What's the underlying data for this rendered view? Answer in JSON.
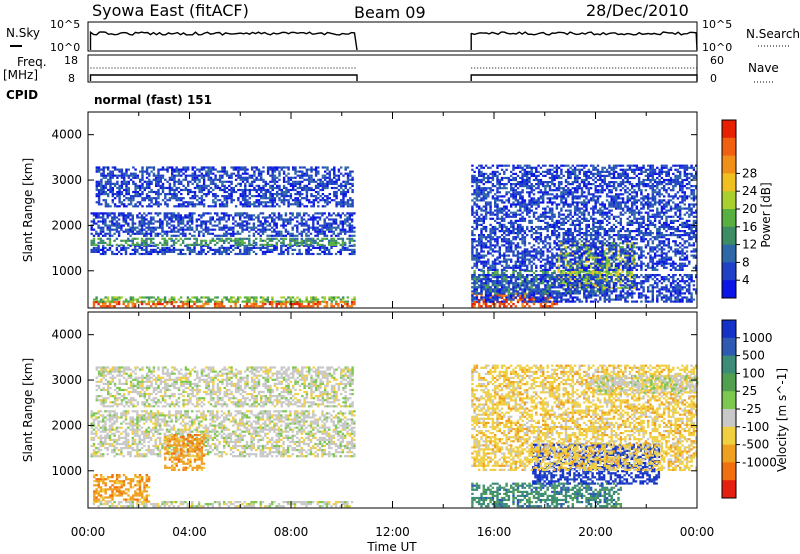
{
  "header": {
    "title": "Syowa East (fitACF)",
    "beam": "Beam 09",
    "date": "28/Dec/2010"
  },
  "nsky_panel": {
    "left_label": "N.Sky",
    "right_label": "N.Search",
    "ticks": [
      "10^5",
      "10^0"
    ]
  },
  "freq_panel": {
    "left_label_line1": "Freq.",
    "left_label_line2": "[MHz]",
    "left_ticks": [
      "18",
      "8"
    ],
    "right_label": "Nave",
    "right_ticks": [
      "60",
      "0"
    ]
  },
  "cpid_panel": {
    "label": "CPID",
    "text": "normal (fast) 151"
  },
  "chart_data": [
    {
      "type": "heatmap",
      "panel": "power",
      "ylabel": "Slant Range [km]",
      "xlabel": "Time UT",
      "xlim": [
        0,
        24
      ],
      "ylim": [
        180,
        4500
      ],
      "x_ticks": [
        "00:00",
        "04:00",
        "08:00",
        "12:00",
        "16:00",
        "20:00",
        "00:00"
      ],
      "y_ticks": [
        1000,
        2000,
        3000,
        4000
      ],
      "data_gaps_hours": [
        [
          10.6,
          15.1
        ]
      ],
      "colorbar": {
        "label": "Power [dB]",
        "ticks": [
          "4",
          "8",
          "12",
          "16",
          "20",
          "24",
          "28"
        ],
        "colors": [
          "#0a14e6",
          "#2040c8",
          "#2e68a8",
          "#3c8c64",
          "#58b040",
          "#aad030",
          "#f0c020",
          "#f09018",
          "#f06010",
          "#e62000"
        ]
      },
      "regions": [
        {
          "t0": 0.1,
          "t1": 10.5,
          "r0": 200,
          "r1": 300,
          "value": 26
        },
        {
          "t0": 0.2,
          "t1": 10.5,
          "r0": 300,
          "r1": 420,
          "value": 14
        },
        {
          "t0": 0.1,
          "t1": 10.5,
          "r0": 1350,
          "r1": 1550,
          "value": 6
        },
        {
          "t0": 0.1,
          "t1": 10.5,
          "r0": 1550,
          "r1": 1700,
          "value": 12
        },
        {
          "t0": 0.1,
          "t1": 10.5,
          "r0": 1750,
          "r1": 2250,
          "value": 5
        },
        {
          "t0": 0.3,
          "t1": 10.4,
          "r0": 2400,
          "r1": 3300,
          "value": 4
        },
        {
          "t0": 15.1,
          "t1": 18.5,
          "r0": 200,
          "r1": 480,
          "value": 26
        },
        {
          "t0": 15.1,
          "t1": 20.5,
          "r0": 480,
          "r1": 1000,
          "value": 12
        },
        {
          "t0": 18.5,
          "t1": 21.5,
          "r0": 600,
          "r1": 1600,
          "value": 18
        },
        {
          "t0": 15.1,
          "t1": 24,
          "r0": 300,
          "r1": 900,
          "value": 6
        },
        {
          "t0": 15.1,
          "t1": 24,
          "r0": 1000,
          "r1": 3300,
          "value": 4
        }
      ]
    },
    {
      "type": "heatmap",
      "panel": "velocity",
      "ylabel": "Slant Range [km]",
      "xlabel": "Time UT",
      "xlim": [
        0,
        24
      ],
      "ylim": [
        180,
        4500
      ],
      "x_ticks": [
        "00:00",
        "04:00",
        "08:00",
        "12:00",
        "16:00",
        "20:00",
        "00:00"
      ],
      "y_ticks": [
        1000,
        2000,
        3000,
        4000
      ],
      "data_gaps_hours": [
        [
          10.6,
          15.1
        ]
      ],
      "colorbar": {
        "label": "Velocity [m s^-1]",
        "ticks": [
          "1000",
          "500",
          "100",
          "25",
          "-25",
          "-100",
          "-500",
          "-1000"
        ],
        "colors": [
          "#1432c8",
          "#2e5ab4",
          "#3c8c78",
          "#50a050",
          "#7cc850",
          "#c8c8c8",
          "#f0d040",
          "#f0a020",
          "#f07010",
          "#e62010"
        ]
      },
      "regions": [
        {
          "t0": 0.1,
          "t1": 10.5,
          "r0": 1300,
          "r1": 2300,
          "value": 0
        },
        {
          "t0": 0.2,
          "t1": 2.4,
          "r0": 300,
          "r1": 900,
          "value": -300
        },
        {
          "t0": 3.0,
          "t1": 4.6,
          "r0": 1000,
          "r1": 1800,
          "value": -300
        },
        {
          "t0": 0.1,
          "t1": 10.4,
          "r0": 200,
          "r1": 320,
          "value": 0
        },
        {
          "t0": 0.3,
          "t1": 10.4,
          "r0": 2400,
          "r1": 3300,
          "value": 0
        },
        {
          "t0": 15.1,
          "t1": 21,
          "r0": 200,
          "r1": 700,
          "value": 300
        },
        {
          "t0": 17.5,
          "t1": 22.5,
          "r0": 700,
          "r1": 1600,
          "value": 800
        },
        {
          "t0": 15.1,
          "t1": 24,
          "r0": 1000,
          "r1": 3300,
          "value": -60
        },
        {
          "t0": 20,
          "t1": 24,
          "r0": 2700,
          "r1": 3100,
          "value": 0
        }
      ]
    }
  ]
}
